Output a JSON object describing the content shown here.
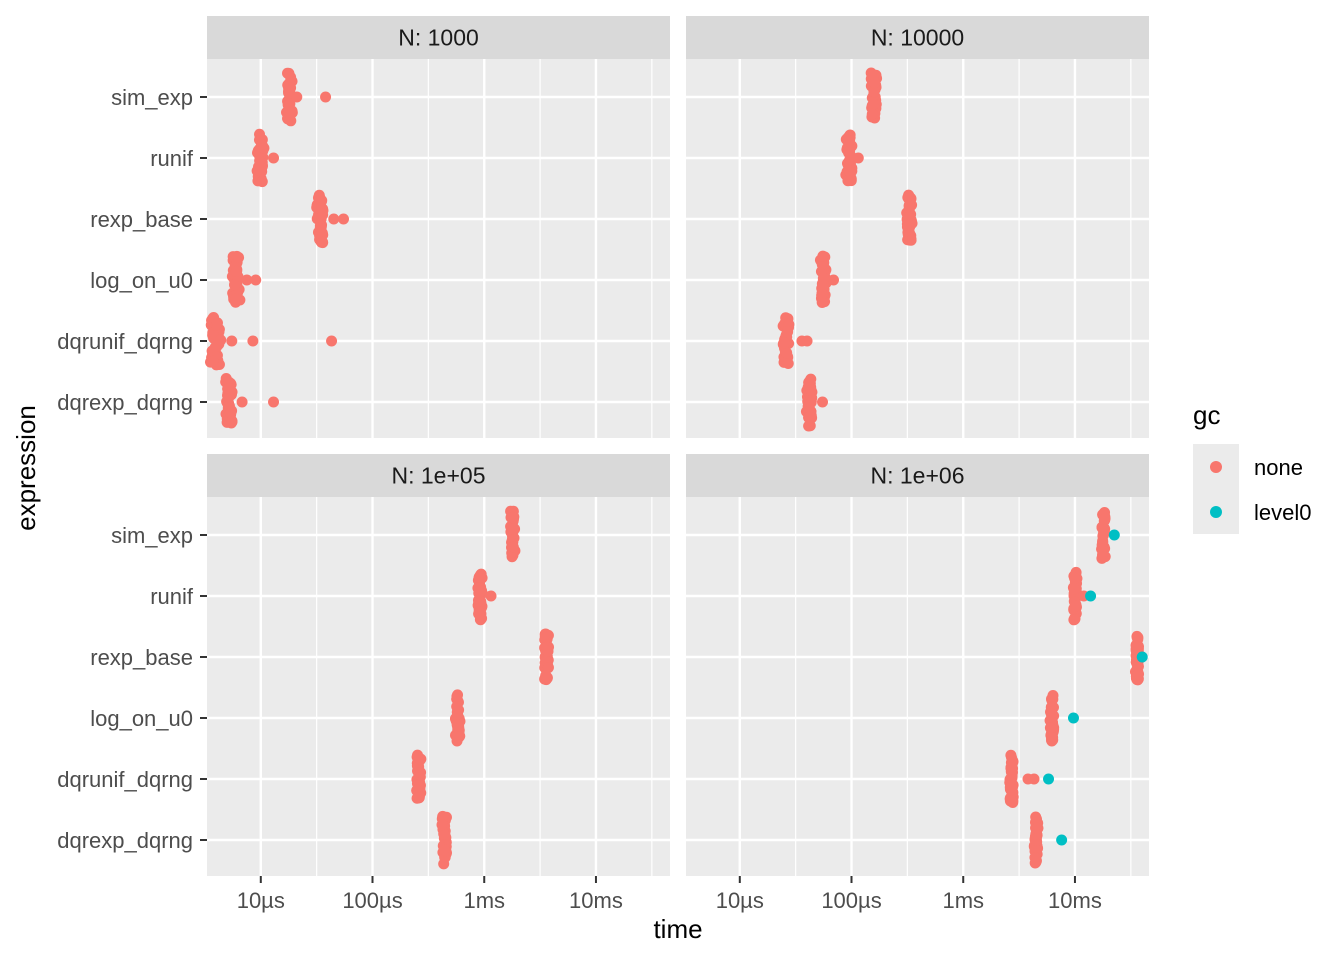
{
  "chart_data": {
    "type": "scatter",
    "xlabel": "time",
    "ylabel": "expression",
    "x_scale": "log10",
    "x_unit": "seconds",
    "xlim": [
      3.3e-06,
      0.046
    ],
    "x_ticks": [
      {
        "value": 1e-05,
        "label": "10µs"
      },
      {
        "value": 0.0001,
        "label": "100µs"
      },
      {
        "value": 0.001,
        "label": "1ms"
      },
      {
        "value": 0.01,
        "label": "10ms"
      }
    ],
    "categories": [
      "sim_exp",
      "runif",
      "rexp_base",
      "log_on_u0",
      "dqrunif_dqrng",
      "dqrexp_dqrng"
    ],
    "legend": {
      "title": "gc",
      "entries": [
        {
          "key": "none",
          "label": "none",
          "color": "#F8766D"
        },
        {
          "key": "level0",
          "label": "level0",
          "color": "#00BFC4"
        }
      ]
    },
    "panels": [
      {
        "title": "N: 1000",
        "groups": [
          {
            "expression": "sim_exp",
            "median": 1.8e-05,
            "spread": 0.1,
            "outliers": [
              {
                "x": 2.1e-05,
                "gc": "none"
              },
              {
                "x": 3.8e-05,
                "gc": "none"
              }
            ]
          },
          {
            "expression": "runif",
            "median": 1e-05,
            "spread": 0.1,
            "outliers": [
              {
                "x": 1.3e-05,
                "gc": "none"
              }
            ]
          },
          {
            "expression": "rexp_base",
            "median": 3.4e-05,
            "spread": 0.1,
            "outliers": [
              {
                "x": 4.5e-05,
                "gc": "none"
              },
              {
                "x": 5.5e-05,
                "gc": "none"
              }
            ]
          },
          {
            "expression": "log_on_u0",
            "median": 6e-06,
            "spread": 0.1,
            "outliers": [
              {
                "x": 7.5e-06,
                "gc": "none"
              },
              {
                "x": 9e-06,
                "gc": "none"
              }
            ]
          },
          {
            "expression": "dqrunif_dqrng",
            "median": 3.9e-06,
            "spread": 0.14,
            "outliers": [
              {
                "x": 5.5e-06,
                "gc": "none"
              },
              {
                "x": 8.5e-06,
                "gc": "none"
              },
              {
                "x": 4.3e-05,
                "gc": "none"
              }
            ]
          },
          {
            "expression": "dqrexp_dqrng",
            "median": 5.2e-06,
            "spread": 0.1,
            "outliers": [
              {
                "x": 6.8e-06,
                "gc": "none"
              },
              {
                "x": 1.3e-05,
                "gc": "none"
              }
            ]
          }
        ]
      },
      {
        "title": "N: 10000",
        "groups": [
          {
            "expression": "sim_exp",
            "median": 0.00016,
            "spread": 0.08,
            "outliers": []
          },
          {
            "expression": "runif",
            "median": 9.5e-05,
            "spread": 0.08,
            "outliers": [
              {
                "x": 0.000115,
                "gc": "none"
              }
            ]
          },
          {
            "expression": "rexp_base",
            "median": 0.00033,
            "spread": 0.08,
            "outliers": []
          },
          {
            "expression": "log_on_u0",
            "median": 5.6e-05,
            "spread": 0.08,
            "outliers": [
              {
                "x": 6.9e-05,
                "gc": "none"
              }
            ]
          },
          {
            "expression": "dqrunif_dqrng",
            "median": 2.6e-05,
            "spread": 0.08,
            "outliers": [
              {
                "x": 3.6e-05,
                "gc": "none"
              },
              {
                "x": 4e-05,
                "gc": "none"
              }
            ]
          },
          {
            "expression": "dqrexp_dqrng",
            "median": 4.2e-05,
            "spread": 0.08,
            "outliers": [
              {
                "x": 5.5e-05,
                "gc": "none"
              }
            ]
          }
        ]
      },
      {
        "title": "N: 1e+05",
        "groups": [
          {
            "expression": "sim_exp",
            "median": 0.0018,
            "spread": 0.06,
            "outliers": []
          },
          {
            "expression": "runif",
            "median": 0.00092,
            "spread": 0.06,
            "outliers": [
              {
                "x": 0.00115,
                "gc": "none"
              }
            ]
          },
          {
            "expression": "rexp_base",
            "median": 0.0036,
            "spread": 0.06,
            "outliers": []
          },
          {
            "expression": "log_on_u0",
            "median": 0.00058,
            "spread": 0.06,
            "outliers": []
          },
          {
            "expression": "dqrunif_dqrng",
            "median": 0.00026,
            "spread": 0.06,
            "outliers": []
          },
          {
            "expression": "dqrexp_dqrng",
            "median": 0.00044,
            "spread": 0.06,
            "outliers": []
          }
        ]
      },
      {
        "title": "N: 1e+06",
        "groups": [
          {
            "expression": "sim_exp",
            "median": 0.018,
            "spread": 0.05,
            "outliers": [
              {
                "x": 0.0225,
                "gc": "level0"
              }
            ]
          },
          {
            "expression": "runif",
            "median": 0.01,
            "spread": 0.05,
            "outliers": [
              {
                "x": 0.012,
                "gc": "none"
              },
              {
                "x": 0.0138,
                "gc": "level0"
              }
            ]
          },
          {
            "expression": "rexp_base",
            "median": 0.036,
            "spread": 0.05,
            "outliers": [
              {
                "x": 0.04,
                "gc": "level0"
              }
            ]
          },
          {
            "expression": "log_on_u0",
            "median": 0.0062,
            "spread": 0.05,
            "outliers": [
              {
                "x": 0.0097,
                "gc": "level0"
              }
            ]
          },
          {
            "expression": "dqrunif_dqrng",
            "median": 0.0027,
            "spread": 0.05,
            "outliers": [
              {
                "x": 0.0038,
                "gc": "none"
              },
              {
                "x": 0.0043,
                "gc": "none"
              },
              {
                "x": 0.0058,
                "gc": "level0"
              }
            ]
          },
          {
            "expression": "dqrexp_dqrng",
            "median": 0.0045,
            "spread": 0.05,
            "outliers": [
              {
                "x": 0.0076,
                "gc": "level0"
              }
            ]
          }
        ]
      }
    ]
  }
}
